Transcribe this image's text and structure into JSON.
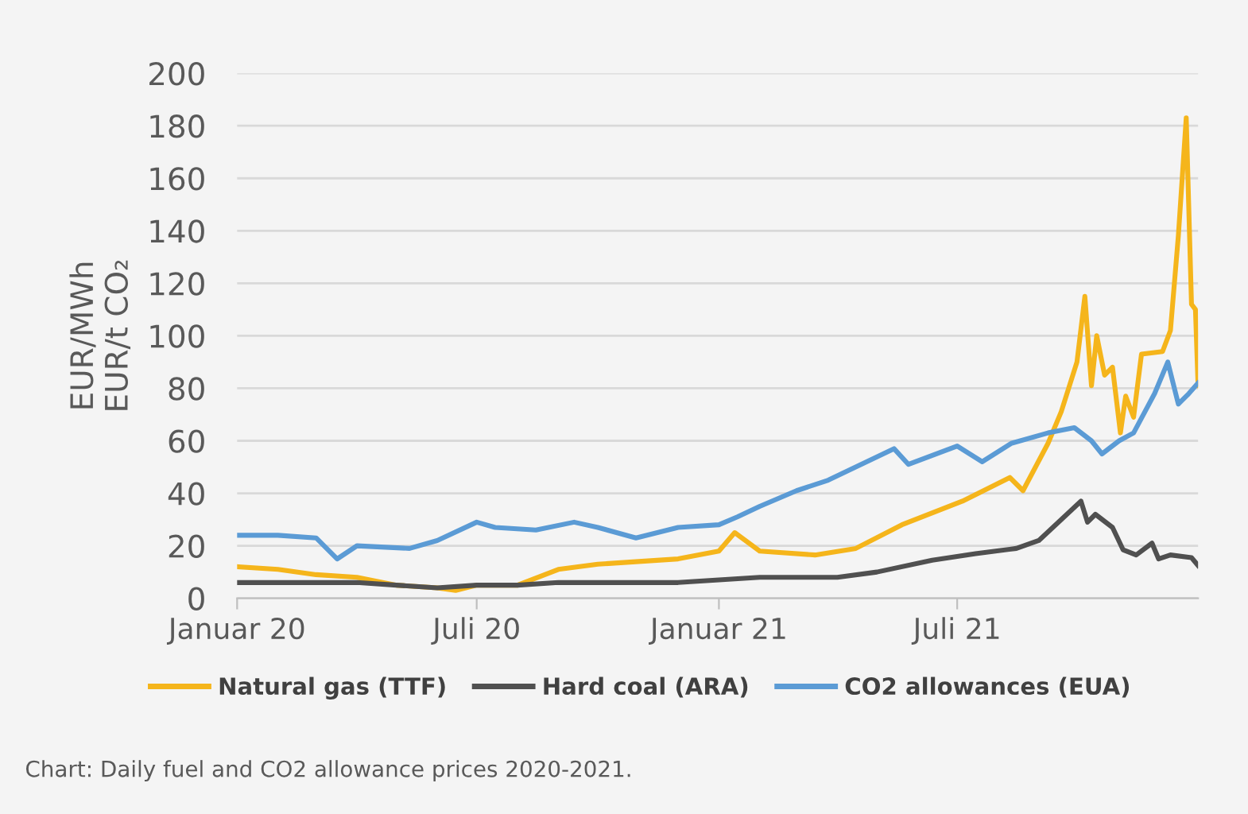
{
  "chart_data": {
    "type": "line",
    "ylabel": "EUR/MWh\nEUR/t CO₂",
    "xlim": [
      "2020-01-01",
      "2021-12-31"
    ],
    "xticks": [
      {
        "value": "2020-01-01",
        "label": "Januar 20"
      },
      {
        "value": "2020-07-01",
        "label": "Juli 20"
      },
      {
        "value": "2021-01-01",
        "label": "Januar 21"
      },
      {
        "value": "2021-07-01",
        "label": "Juli 21"
      }
    ],
    "ylim": [
      0,
      200
    ],
    "yticks": [
      0,
      20,
      40,
      60,
      80,
      100,
      120,
      140,
      160,
      180,
      200
    ],
    "grid": "y",
    "legend": "bottom",
    "line_style": "solid",
    "marker": "none",
    "series": [
      {
        "name": "Natural gas (TTF)",
        "color": "#f5b51b",
        "x": [
          "2020-01-02",
          "2020-02-01",
          "2020-03-01",
          "2020-04-01",
          "2020-05-01",
          "2020-06-01",
          "2020-06-15",
          "2020-07-01",
          "2020-08-01",
          "2020-09-01",
          "2020-10-01",
          "2020-11-01",
          "2020-12-01",
          "2021-01-01",
          "2021-01-13",
          "2021-02-01",
          "2021-03-15",
          "2021-04-15",
          "2021-05-20",
          "2021-07-05",
          "2021-08-10",
          "2021-08-20",
          "2021-09-08",
          "2021-09-18",
          "2021-09-30",
          "2021-10-06",
          "2021-10-11",
          "2021-10-15",
          "2021-10-21",
          "2021-10-27",
          "2021-11-02",
          "2021-11-06",
          "2021-11-12",
          "2021-11-18",
          "2021-12-04",
          "2021-12-10",
          "2021-12-16",
          "2021-12-22",
          "2021-12-26",
          "2021-12-29",
          "2021-12-31"
        ],
        "values": [
          12,
          11,
          9,
          8,
          5,
          4,
          3,
          5,
          5,
          11,
          13,
          14,
          15,
          18,
          25,
          18,
          16.5,
          19,
          28,
          37,
          46,
          41,
          59,
          71,
          90,
          115,
          81,
          100,
          85,
          88,
          63,
          77,
          69,
          93,
          94,
          102,
          138,
          183,
          112,
          110,
          81
        ]
      },
      {
        "name": "Hard coal (ARA)",
        "color": "#505050",
        "x": [
          "2020-01-02",
          "2020-02-01",
          "2020-03-01",
          "2020-04-01",
          "2020-05-01",
          "2020-06-01",
          "2020-07-01",
          "2020-08-01",
          "2020-09-01",
          "2020-10-01",
          "2020-11-01",
          "2020-12-01",
          "2021-01-01",
          "2021-02-01",
          "2021-03-01",
          "2021-04-01",
          "2021-05-01",
          "2021-06-12",
          "2021-07-15",
          "2021-08-15",
          "2021-09-01",
          "2021-10-03",
          "2021-10-08",
          "2021-10-14",
          "2021-10-27",
          "2021-11-04",
          "2021-11-14",
          "2021-11-26",
          "2021-12-01",
          "2021-12-10",
          "2021-12-26",
          "2021-12-31"
        ],
        "values": [
          6,
          6,
          6,
          6,
          5,
          4,
          5,
          5,
          6,
          6,
          6,
          6,
          7,
          8,
          8,
          8,
          10,
          14.5,
          17,
          19,
          22,
          37,
          29,
          32,
          27,
          18.5,
          16.5,
          21,
          15,
          16.5,
          15.5,
          12.5
        ]
      },
      {
        "name": "CO2 allowances (EUA)",
        "color": "#5b9bd5",
        "x": [
          "2020-01-02",
          "2020-02-01",
          "2020-03-01",
          "2020-03-17",
          "2020-04-01",
          "2020-05-11",
          "2020-06-01",
          "2020-07-01",
          "2020-07-15",
          "2020-08-15",
          "2020-09-13",
          "2020-10-01",
          "2020-10-30",
          "2020-12-01",
          "2021-01-01",
          "2021-01-15",
          "2021-02-01",
          "2021-03-01",
          "2021-03-25",
          "2021-05-14",
          "2021-05-25",
          "2021-07-01",
          "2021-07-20",
          "2021-08-11",
          "2021-09-08",
          "2021-09-28",
          "2021-10-11",
          "2021-10-19",
          "2021-11-01",
          "2021-11-12",
          "2021-11-28",
          "2021-12-08",
          "2021-12-16",
          "2021-12-24",
          "2021-12-31"
        ],
        "values": [
          24,
          24,
          23,
          15,
          20,
          19,
          22,
          29,
          27,
          26,
          29,
          27,
          23,
          27,
          28,
          31,
          35,
          41,
          45,
          57,
          51,
          58,
          52,
          59,
          63,
          65,
          60,
          55,
          60,
          63,
          78,
          90,
          74,
          78,
          82
        ]
      }
    ],
    "annotations": [
      "Chart: Daily fuel and CO2 allowance prices 2020-2021."
    ]
  }
}
